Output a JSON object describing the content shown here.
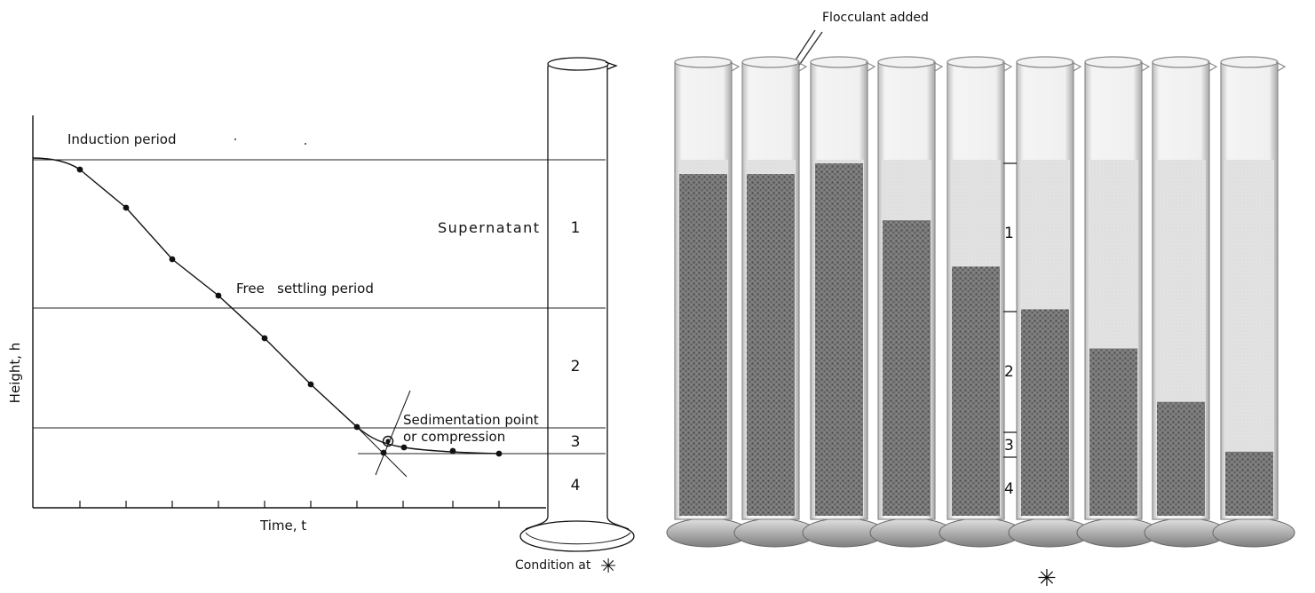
{
  "graph": {
    "labels": {
      "induction": "Induction period",
      "free_settling": "Free   settling period",
      "supernatant": "Supernatant",
      "sed_point_line1": "Sedimentation point",
      "sed_point_line2": "or compression",
      "x_axis": "Time, t",
      "y_axis": "Height, h"
    },
    "zones": [
      "1",
      "2",
      "3",
      "4"
    ],
    "caption": "Condition at",
    "caption_symbol": "✳"
  },
  "photo": {
    "flocculant_label": "Flocculant added",
    "zones": [
      "1",
      "2",
      "3",
      "4"
    ],
    "bottom_symbol": "✳",
    "sediment_levels": [
      0.96,
      0.96,
      0.99,
      0.83,
      0.7,
      0.58,
      0.47,
      0.32,
      0.18
    ]
  }
}
